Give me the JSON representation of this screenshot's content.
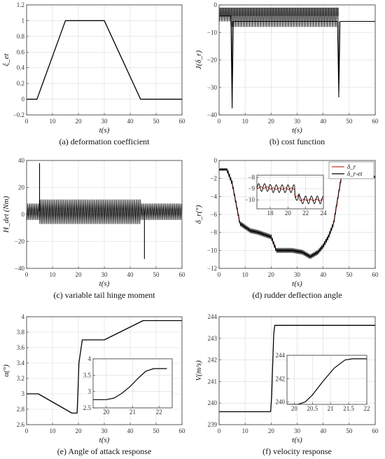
{
  "chart_data": [
    {
      "id": "a",
      "type": "line",
      "caption": "(a) deformation coefficient",
      "xlabel": "t(s)",
      "ylabel": "ξ_et",
      "xlim": [
        0,
        60
      ],
      "ylim": [
        -0.2,
        1.2
      ],
      "xticks": [
        0,
        10,
        20,
        30,
        40,
        50,
        60
      ],
      "yticks": [
        -0.2,
        0,
        0.2,
        0.4,
        0.6,
        0.8,
        1,
        1.2
      ],
      "grid": true,
      "series": [
        {
          "color": "#000000",
          "x": [
            0,
            4,
            15,
            30,
            44,
            60
          ],
          "y": [
            0,
            0,
            1,
            1,
            0,
            0
          ]
        }
      ]
    },
    {
      "id": "b",
      "type": "line",
      "caption": "(b) cost function",
      "xlabel": "t(s)",
      "ylabel": "J(δ_r)",
      "xlim": [
        0,
        60
      ],
      "ylim": [
        -40,
        0
      ],
      "xticks": [
        0,
        10,
        20,
        30,
        40,
        50,
        60
      ],
      "yticks": [
        -40,
        -30,
        -20,
        -10,
        0
      ],
      "grid": true,
      "band": {
        "x": [
          0,
          46
        ],
        "top": -1,
        "bottom": -8
      },
      "spikes": [
        {
          "x": 5,
          "y": -37.5
        },
        {
          "x": 46,
          "y": -33.5
        }
      ],
      "series": [
        {
          "color": "#000000",
          "x": [
            0,
            4.5,
            5,
            5.5,
            45.5,
            46,
            46.5,
            60
          ],
          "y": [
            -4,
            -4,
            -37.5,
            -6,
            -6,
            -33.5,
            -6,
            -6
          ]
        }
      ]
    },
    {
      "id": "c",
      "type": "line",
      "caption": "(c) variable tail hinge moment",
      "xlabel": "t(s)",
      "ylabel": "H_det (Nm)",
      "xlim": [
        0,
        60
      ],
      "ylim": [
        -40,
        40
      ],
      "xticks": [
        0,
        10,
        20,
        30,
        40,
        50,
        60
      ],
      "yticks": [
        -40,
        -20,
        0,
        20,
        40
      ],
      "grid": true,
      "oscillation": {
        "center": 2,
        "amp_start": 6,
        "amp_mid": 9,
        "amp_end": 6
      },
      "spikes": [
        {
          "x": 5,
          "y": 38
        },
        {
          "x": 45.5,
          "y": -33
        }
      ]
    },
    {
      "id": "d",
      "type": "line",
      "caption": "(d) rudder deflection angle",
      "xlabel": "t(s)",
      "ylabel": "δ_r(°)",
      "xlim": [
        0,
        60
      ],
      "ylim": [
        -12,
        0
      ],
      "xticks": [
        0,
        10,
        20,
        30,
        40,
        50,
        60
      ],
      "yticks": [
        -12,
        -10,
        -8,
        -6,
        -4,
        -2,
        0
      ],
      "grid": true,
      "series": [
        {
          "name": "δ_r",
          "color": "#c0392b",
          "x": [
            0,
            3,
            5,
            8,
            12,
            15,
            20,
            22,
            28,
            32,
            35,
            38,
            40,
            42,
            44,
            47,
            60
          ],
          "y": [
            -1,
            -1,
            -2.5,
            -7,
            -7.8,
            -8,
            -8.5,
            -10,
            -10,
            -10.2,
            -10.7,
            -10.2,
            -9.5,
            -8.5,
            -7,
            -1.8,
            -1.8
          ]
        },
        {
          "name": "δ_r-et",
          "color": "#000000",
          "x": [
            0,
            3,
            5,
            8,
            12,
            15,
            20,
            22,
            28,
            32,
            35,
            38,
            40,
            42,
            44,
            47,
            60
          ],
          "y": [
            -1,
            -1,
            -2.5,
            -7,
            -7.8,
            -8,
            -8.5,
            -10,
            -10,
            -10.2,
            -10.7,
            -10.2,
            -9.5,
            -8.5,
            -7,
            -1.8,
            -1.8
          ]
        }
      ],
      "legend": "top-right",
      "inset": {
        "xlim": [
          16.5,
          24
        ],
        "ylim": [
          -10.8,
          -7.8
        ],
        "xticks": [
          18,
          20,
          22,
          24
        ],
        "yticks": [
          -10,
          -9,
          -8
        ],
        "yticklabels": [
          "−10",
          "−9",
          "−8"
        ]
      }
    },
    {
      "id": "e",
      "type": "line",
      "caption": "(e) Angle of attack response",
      "xlabel": "t(s)",
      "ylabel": "α(°)",
      "xlim": [
        0,
        60
      ],
      "ylim": [
        2.6,
        4
      ],
      "xticks": [
        0,
        10,
        20,
        30,
        40,
        50,
        60
      ],
      "yticks": [
        2.6,
        2.8,
        3,
        3.2,
        3.4,
        3.6,
        3.8,
        4
      ],
      "grid": true,
      "series": [
        {
          "color": "#000000",
          "x": [
            0,
            4.5,
            17.5,
            19.5,
            19.8,
            20.2,
            21.5,
            30,
            45,
            60
          ],
          "y": [
            3,
            3,
            2.75,
            2.75,
            3.0,
            3.4,
            3.7,
            3.7,
            3.95,
            3.95
          ]
        }
      ],
      "inset": {
        "xlim": [
          19.5,
          22.5
        ],
        "ylim": [
          2.5,
          4
        ],
        "xticks": [
          20,
          21,
          22
        ],
        "yticks": [
          2.5,
          3,
          3.5,
          4
        ],
        "series_x": [
          19.5,
          20.0,
          20.3,
          20.6,
          20.9,
          21.2,
          21.5,
          21.8,
          22.3
        ],
        "series_y": [
          2.75,
          2.75,
          2.8,
          2.95,
          3.15,
          3.4,
          3.62,
          3.7,
          3.7
        ]
      }
    },
    {
      "id": "f",
      "type": "line",
      "caption": "(f) velocity response",
      "xlabel": "t(s)",
      "ylabel": "V(m/s)",
      "xlim": [
        0,
        60
      ],
      "ylim": [
        239,
        244
      ],
      "xticks": [
        0,
        10,
        20,
        30,
        40,
        50,
        60
      ],
      "yticks": [
        239,
        240,
        241,
        242,
        243,
        244
      ],
      "grid": true,
      "series": [
        {
          "color": "#000000",
          "x": [
            0,
            19.8,
            20.2,
            20.6,
            21.0,
            21.4,
            60
          ],
          "y": [
            239.6,
            239.6,
            240.3,
            241.8,
            243.2,
            243.6,
            243.6
          ]
        }
      ],
      "inset": {
        "xlim": [
          19.8,
          22
        ],
        "ylim": [
          239.8,
          244
        ],
        "xticks": [
          20,
          20.5,
          21,
          21.5,
          22
        ],
        "yticks": [
          240,
          242,
          244
        ],
        "series_x": [
          19.8,
          20.1,
          20.3,
          20.5,
          20.8,
          21.1,
          21.4,
          21.6,
          22
        ],
        "series_y": [
          239.8,
          239.8,
          240.0,
          240.6,
          241.8,
          242.9,
          243.6,
          243.7,
          243.7
        ]
      }
    }
  ]
}
